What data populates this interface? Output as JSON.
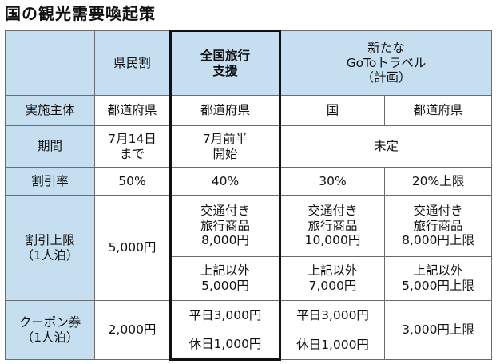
{
  "title": "国の観光需要喚起策",
  "header": {
    "prefectural": "県民割",
    "national_support": [
      "全国旅行",
      "支援"
    ],
    "new_goto": [
      "新たな",
      "GoToトラベル",
      "（計画）"
    ]
  },
  "rows": {
    "implementer": {
      "label": "実施主体",
      "prefectural": "都道府県",
      "national_support": "都道府県",
      "goto_national": "国",
      "goto_prefectural": "都道府県"
    },
    "period": {
      "label": "期間",
      "prefectural": [
        "7月14日",
        "まで"
      ],
      "national_support": [
        "7月前半",
        "開始"
      ],
      "goto": "未定"
    },
    "discount_rate": {
      "label": "割引率",
      "prefectural": "50%",
      "national_support": "40%",
      "goto_national": "30%",
      "goto_prefectural": "20%上限"
    },
    "discount_cap": {
      "label": [
        "割引上限",
        "（1人泊）"
      ],
      "prefectural": "5,000円",
      "with_transport": {
        "national_support": [
          "交通付き",
          "旅行商品",
          "8,000円"
        ],
        "goto_national": [
          "交通付き",
          "旅行商品",
          "10,000円"
        ],
        "goto_prefectural": [
          "交通付き",
          "旅行商品",
          "8,000円上限"
        ]
      },
      "other": {
        "national_support": [
          "上記以外",
          "5,000円"
        ],
        "goto_national": [
          "上記以外",
          "7,000円"
        ],
        "goto_prefectural": [
          "上記以外",
          "5,000円上限"
        ]
      }
    },
    "coupon": {
      "label": [
        "クーポン券",
        "（1人泊）"
      ],
      "prefectural": "2,000円",
      "weekday": {
        "national_support": "平日3,000円",
        "goto_national": "平日3,000円"
      },
      "holiday": {
        "national_support": "休日1,000円",
        "goto_national": "休日1,000円"
      },
      "goto_prefectural": "3,000円上限"
    }
  },
  "colors": {
    "header_shade": "#c6dff0",
    "highlight_border": "#111111",
    "grid_line": "#6b6b6b"
  }
}
